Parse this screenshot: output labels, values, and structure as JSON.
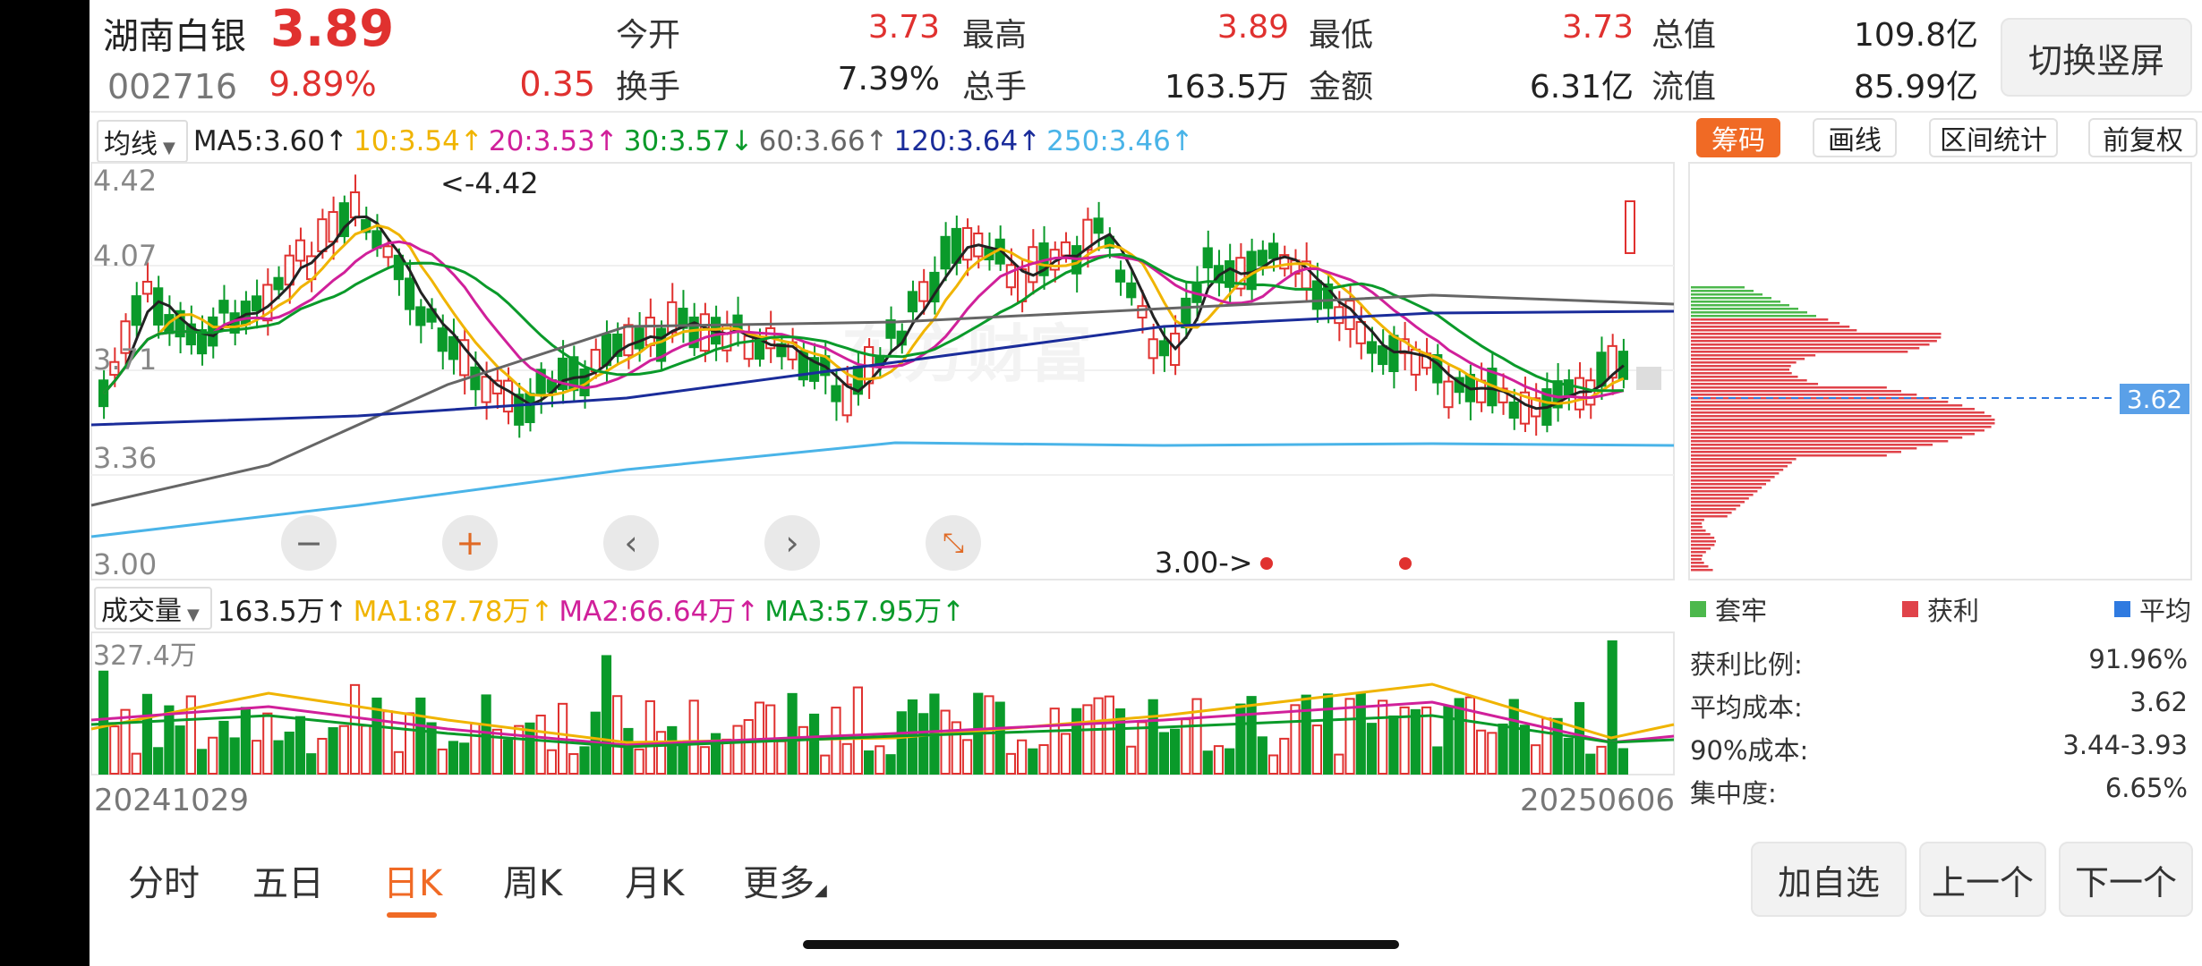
{
  "stock": {
    "name": "湖南白银",
    "price": "3.89",
    "code": "002716",
    "change_pct": "9.89%",
    "change_amt": "0.35"
  },
  "quote": [
    {
      "label": "今开",
      "value": "3.73"
    },
    {
      "label": "最高",
      "value": "3.89"
    },
    {
      "label": "最低",
      "value": "3.73"
    },
    {
      "label": "总值",
      "value": "109.8亿"
    },
    {
      "label": "换手",
      "value": "7.39%"
    },
    {
      "label": "总手",
      "value": "163.5万"
    },
    {
      "label": "金额",
      "value": "6.31亿"
    },
    {
      "label": "流值",
      "value": "85.99亿"
    }
  ],
  "switch_btn": "切换竖屏",
  "ma_bar": {
    "selector": "均线",
    "items": [
      {
        "text": "MA5:3.60↑",
        "color": "#222222"
      },
      {
        "text": "10:3.54↑",
        "color": "#f0b400"
      },
      {
        "text": "20:3.53↑",
        "color": "#d0209a"
      },
      {
        "text": "30:3.57↓",
        "color": "#0a9a2a"
      },
      {
        "text": "60:3.66↑",
        "color": "#666666"
      },
      {
        "text": "120:3.64↑",
        "color": "#1a2c9a"
      },
      {
        "text": "250:3.46↑",
        "color": "#4ab4e8"
      }
    ]
  },
  "chart_tabs": [
    "筹码",
    "画线",
    "区间统计",
    "前复权"
  ],
  "kline": {
    "y_ticks": [
      "4.42",
      "4.07",
      "3.71",
      "3.36",
      "3.00"
    ],
    "high_marker": "<-4.42",
    "low_marker": "3.00->",
    "watermark": "东方财富"
  },
  "volume_bar": {
    "selector": "成交量",
    "items": [
      {
        "text": "163.5万↑",
        "color": "#222222"
      },
      {
        "text": "MA1:87.78万↑",
        "color": "#f0b400"
      },
      {
        "text": "MA2:66.64万↑",
        "color": "#d0209a"
      },
      {
        "text": "MA3:57.95万↑",
        "color": "#0a9a2a"
      }
    ],
    "max_label": "327.4万"
  },
  "dates": {
    "start": "20241029",
    "end": "20250606"
  },
  "chips": {
    "avg_label": "3.62",
    "legend": [
      {
        "label": "套牢",
        "color": "#4cb84c"
      },
      {
        "label": "获利",
        "color": "#e0434a"
      },
      {
        "label": "平均",
        "color": "#2f7ae0"
      }
    ],
    "stats": [
      {
        "label": "获利比例:",
        "value": "91.96%"
      },
      {
        "label": "平均成本:",
        "value": "3.62"
      },
      {
        "label": "90%成本:",
        "value": "3.44-3.93"
      },
      {
        "label": "集中度:",
        "value": "6.65%"
      }
    ]
  },
  "period_tabs": [
    "分时",
    "五日",
    "日K",
    "周K",
    "月K",
    "更多"
  ],
  "active_period": "日K",
  "actions": [
    "加自选",
    "上一个",
    "下一个"
  ]
}
